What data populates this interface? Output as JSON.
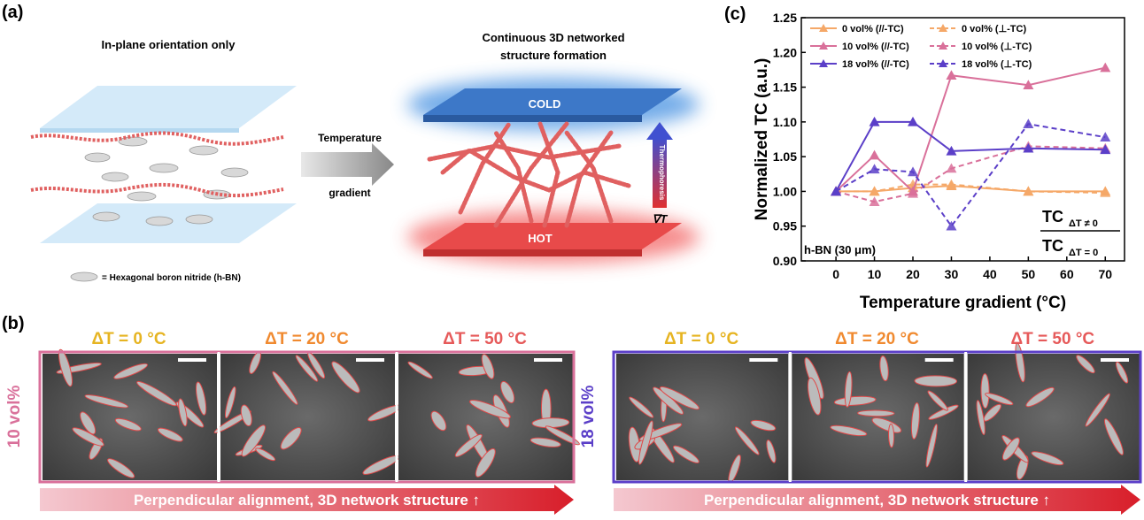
{
  "panel_a": {
    "label": "(a)",
    "left_title": "In-plane orientation only",
    "right_title": [
      "Continuous 3D networked",
      "structure formation"
    ],
    "arrow_text": [
      "Temperature",
      "gradient"
    ],
    "cold": "COLD",
    "hot": "HOT",
    "thermophoresis": "Thermophoresis",
    "gradient_symbol": "∇T",
    "legend": "= Hexagonal boron nitride (h-BN)"
  },
  "panel_b": {
    "label": "(b)",
    "groups": [
      {
        "volume": "10 vol%",
        "color": "#d9709a",
        "conditions": [
          "ΔT = 0 °C",
          "ΔT = 20 °C",
          "ΔT = 50 °C"
        ],
        "arrow": "Perpendicular alignment, 3D network structure ↑"
      },
      {
        "volume": "18 vol%",
        "color": "#5b3fc8",
        "conditions": [
          "ΔT = 0 °C",
          "ΔT = 20 °C",
          "ΔT = 50 °C"
        ],
        "arrow": "Perpendicular alignment, 3D network structure ↑"
      }
    ],
    "condition_colors": [
      "#e6b422",
      "#f08a30",
      "#e65a5a"
    ]
  },
  "panel_c": {
    "label": "(c)"
  },
  "chart_data": {
    "type": "line",
    "x_label": "Temperature gradient (°C)",
    "y_label": "Normalized TC (a.u.)",
    "x": [
      0,
      10,
      20,
      30,
      50,
      70
    ],
    "series": [
      {
        "name": "0 vol% (//-TC)",
        "color": "#f5a868",
        "dashed": false,
        "values": [
          1.0,
          1.0,
          1.005,
          1.008,
          1.0,
          1.0
        ]
      },
      {
        "name": "0 vol% (⊥-TC)",
        "color": "#f5a868",
        "dashed": true,
        "values": [
          1.0,
          1.0,
          1.01,
          1.01,
          1.0,
          0.998
        ]
      },
      {
        "name": "10 vol% (//-TC)",
        "color": "#d9709a",
        "dashed": false,
        "values": [
          1.0,
          1.052,
          1.0,
          1.167,
          1.153,
          1.178
        ]
      },
      {
        "name": "10 vol% (⊥-TC)",
        "color": "#d9709a",
        "dashed": true,
        "values": [
          1.0,
          0.985,
          0.997,
          1.033,
          1.065,
          1.062
        ]
      },
      {
        "name": "18 vol% (//-TC)",
        "color": "#5b3fc8",
        "dashed": false,
        "values": [
          1.0,
          1.1,
          1.1,
          1.058,
          1.062,
          1.06
        ]
      },
      {
        "name": "18 vol% (⊥-TC)",
        "color": "#5b3fc8",
        "dashed": true,
        "values": [
          1.0,
          1.032,
          1.028,
          0.95,
          1.097,
          1.078
        ]
      }
    ],
    "xlim": [
      -9,
      75
    ],
    "xticks": [
      0,
      10,
      20,
      30,
      40,
      50,
      60,
      70
    ],
    "ylim": [
      0.9,
      1.25
    ],
    "yticks": [
      {
        "value": 0.9,
        "label": "0.90"
      },
      0.95,
      {
        "value": 1.0,
        "label": "1.00"
      },
      1.05,
      {
        "value": 1.1,
        "label": "1.10"
      },
      1.15,
      {
        "value": 1.2,
        "label": "1.20"
      },
      1.25
    ],
    "legend_position": "upper left",
    "annotations": {
      "sample": "h-BN (30 μm)",
      "ratio": {
        "numerator": {
          "text": "TC",
          "sub": "ΔT ≠ 0"
        },
        "denominator": {
          "text": "TC",
          "sub": "ΔT = 0"
        }
      }
    }
  }
}
